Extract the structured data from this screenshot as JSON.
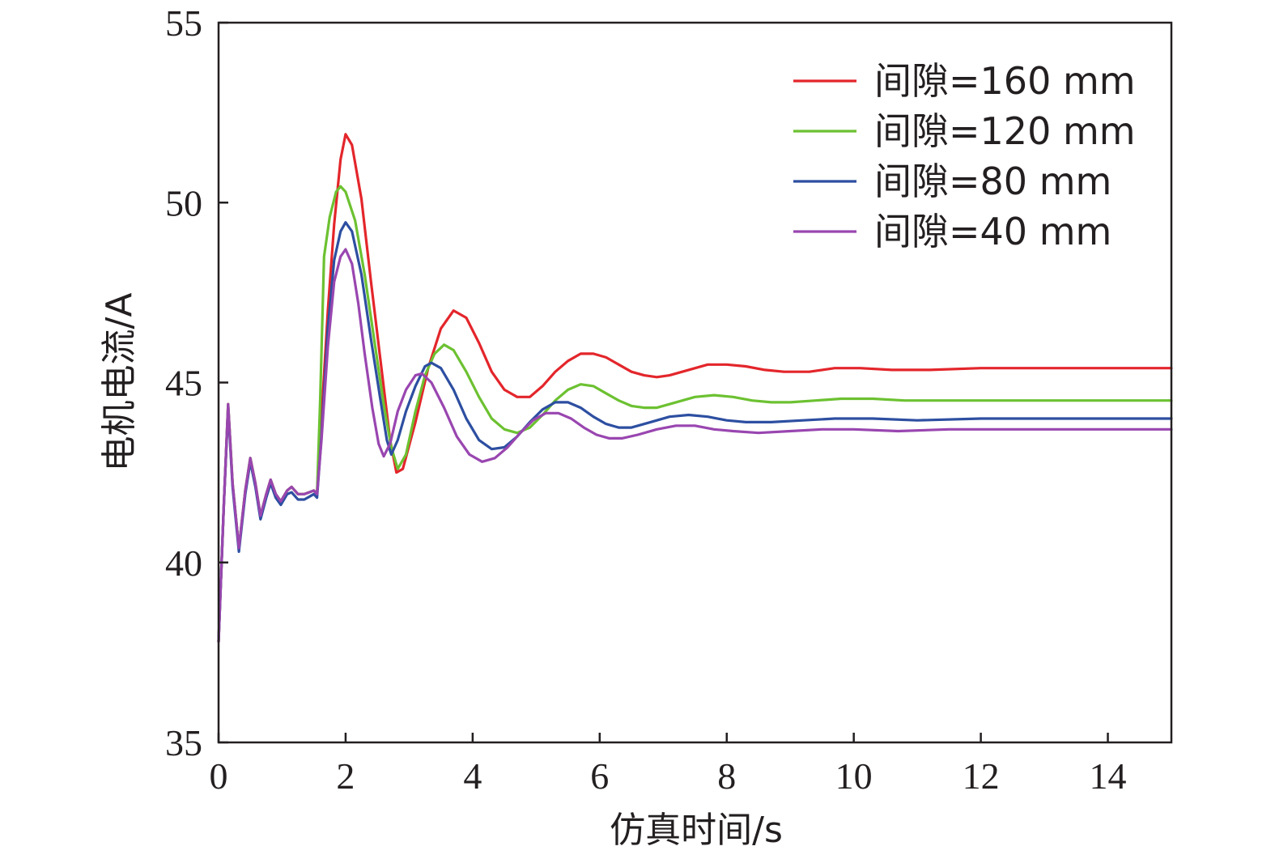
{
  "chart_data": {
    "type": "line",
    "title": "",
    "xlabel": "仿真时间/s",
    "ylabel": "电机电流/A",
    "xlim": [
      0,
      15
    ],
    "ylim": [
      35,
      55
    ],
    "x_ticks": [
      0,
      2,
      4,
      6,
      8,
      10,
      12,
      14
    ],
    "y_ticks": [
      35,
      40,
      45,
      50,
      55
    ],
    "grid": false,
    "legend_position": "top-right",
    "series": [
      {
        "name": "间隙=160 mm",
        "color": "#e3262b",
        "points": [
          [
            0,
            37.8
          ],
          [
            0.08,
            41.5
          ],
          [
            0.15,
            44.4
          ],
          [
            0.22,
            42.2
          ],
          [
            0.32,
            40.4
          ],
          [
            0.42,
            42.0
          ],
          [
            0.5,
            42.9
          ],
          [
            0.58,
            42.2
          ],
          [
            0.66,
            41.3
          ],
          [
            0.75,
            41.9
          ],
          [
            0.82,
            42.3
          ],
          [
            0.9,
            41.9
          ],
          [
            0.98,
            41.7
          ],
          [
            1.08,
            42.0
          ],
          [
            1.15,
            42.1
          ],
          [
            1.25,
            41.9
          ],
          [
            1.35,
            41.9
          ],
          [
            1.5,
            42.0
          ],
          [
            1.55,
            41.9
          ],
          [
            1.62,
            44.0
          ],
          [
            1.72,
            47.0
          ],
          [
            1.82,
            49.4
          ],
          [
            1.92,
            51.2
          ],
          [
            2.0,
            51.9
          ],
          [
            2.1,
            51.6
          ],
          [
            2.25,
            50.1
          ],
          [
            2.4,
            47.8
          ],
          [
            2.55,
            45.6
          ],
          [
            2.7,
            43.4
          ],
          [
            2.8,
            42.5
          ],
          [
            2.9,
            42.6
          ],
          [
            3.1,
            43.9
          ],
          [
            3.3,
            45.4
          ],
          [
            3.5,
            46.5
          ],
          [
            3.7,
            47.0
          ],
          [
            3.9,
            46.8
          ],
          [
            4.1,
            46.1
          ],
          [
            4.3,
            45.3
          ],
          [
            4.5,
            44.8
          ],
          [
            4.7,
            44.6
          ],
          [
            4.9,
            44.6
          ],
          [
            5.1,
            44.9
          ],
          [
            5.3,
            45.3
          ],
          [
            5.5,
            45.6
          ],
          [
            5.7,
            45.8
          ],
          [
            5.9,
            45.8
          ],
          [
            6.1,
            45.7
          ],
          [
            6.3,
            45.5
          ],
          [
            6.5,
            45.3
          ],
          [
            6.7,
            45.2
          ],
          [
            6.9,
            45.15
          ],
          [
            7.1,
            45.2
          ],
          [
            7.4,
            45.35
          ],
          [
            7.7,
            45.5
          ],
          [
            8.0,
            45.5
          ],
          [
            8.3,
            45.45
          ],
          [
            8.6,
            45.35
          ],
          [
            8.9,
            45.3
          ],
          [
            9.3,
            45.3
          ],
          [
            9.7,
            45.4
          ],
          [
            10.1,
            45.4
          ],
          [
            10.6,
            45.35
          ],
          [
            11.2,
            45.35
          ],
          [
            12.0,
            45.4
          ],
          [
            13.0,
            45.4
          ],
          [
            14.0,
            45.4
          ],
          [
            15.0,
            45.4
          ]
        ]
      },
      {
        "name": "间隙=120 mm",
        "color": "#6cc131",
        "points": [
          [
            0,
            37.8
          ],
          [
            0.08,
            41.5
          ],
          [
            0.15,
            44.4
          ],
          [
            0.22,
            42.2
          ],
          [
            0.32,
            40.4
          ],
          [
            0.42,
            42.0
          ],
          [
            0.5,
            42.9
          ],
          [
            0.58,
            42.2
          ],
          [
            0.66,
            41.3
          ],
          [
            0.75,
            41.9
          ],
          [
            0.82,
            42.3
          ],
          [
            0.9,
            41.9
          ],
          [
            0.98,
            41.7
          ],
          [
            1.08,
            42.0
          ],
          [
            1.15,
            42.1
          ],
          [
            1.25,
            41.9
          ],
          [
            1.35,
            41.9
          ],
          [
            1.5,
            42.0
          ],
          [
            1.55,
            41.9
          ],
          [
            1.6,
            44.5
          ],
          [
            1.66,
            48.5
          ],
          [
            1.75,
            49.6
          ],
          [
            1.85,
            50.3
          ],
          [
            1.92,
            50.45
          ],
          [
            2.0,
            50.3
          ],
          [
            2.15,
            49.5
          ],
          [
            2.3,
            48.0
          ],
          [
            2.45,
            46.2
          ],
          [
            2.6,
            44.4
          ],
          [
            2.72,
            43.2
          ],
          [
            2.82,
            42.6
          ],
          [
            2.95,
            43.0
          ],
          [
            3.1,
            44.2
          ],
          [
            3.25,
            45.2
          ],
          [
            3.4,
            45.8
          ],
          [
            3.55,
            46.05
          ],
          [
            3.7,
            45.9
          ],
          [
            3.9,
            45.3
          ],
          [
            4.1,
            44.6
          ],
          [
            4.3,
            44.0
          ],
          [
            4.5,
            43.7
          ],
          [
            4.7,
            43.6
          ],
          [
            4.9,
            43.75
          ],
          [
            5.1,
            44.1
          ],
          [
            5.3,
            44.5
          ],
          [
            5.5,
            44.8
          ],
          [
            5.7,
            44.95
          ],
          [
            5.9,
            44.9
          ],
          [
            6.1,
            44.7
          ],
          [
            6.3,
            44.5
          ],
          [
            6.5,
            44.35
          ],
          [
            6.7,
            44.3
          ],
          [
            6.9,
            44.3
          ],
          [
            7.2,
            44.45
          ],
          [
            7.5,
            44.6
          ],
          [
            7.8,
            44.65
          ],
          [
            8.1,
            44.6
          ],
          [
            8.4,
            44.5
          ],
          [
            8.7,
            44.45
          ],
          [
            9.0,
            44.45
          ],
          [
            9.4,
            44.5
          ],
          [
            9.8,
            44.55
          ],
          [
            10.3,
            44.55
          ],
          [
            10.8,
            44.5
          ],
          [
            11.5,
            44.5
          ],
          [
            12.5,
            44.5
          ],
          [
            13.5,
            44.5
          ],
          [
            15.0,
            44.5
          ]
        ]
      },
      {
        "name": "间隙=80 mm",
        "color": "#2d4fa1",
        "points": [
          [
            0,
            37.8
          ],
          [
            0.08,
            41.5
          ],
          [
            0.15,
            44.3
          ],
          [
            0.22,
            42.1
          ],
          [
            0.32,
            40.3
          ],
          [
            0.42,
            41.9
          ],
          [
            0.5,
            42.8
          ],
          [
            0.58,
            42.1
          ],
          [
            0.66,
            41.2
          ],
          [
            0.75,
            41.8
          ],
          [
            0.82,
            42.2
          ],
          [
            0.9,
            41.8
          ],
          [
            0.98,
            41.6
          ],
          [
            1.08,
            41.9
          ],
          [
            1.15,
            41.95
          ],
          [
            1.25,
            41.75
          ],
          [
            1.35,
            41.75
          ],
          [
            1.5,
            41.9
          ],
          [
            1.55,
            41.8
          ],
          [
            1.62,
            43.5
          ],
          [
            1.72,
            46.5
          ],
          [
            1.82,
            48.4
          ],
          [
            1.92,
            49.2
          ],
          [
            2.0,
            49.45
          ],
          [
            2.1,
            49.2
          ],
          [
            2.25,
            48.0
          ],
          [
            2.4,
            46.2
          ],
          [
            2.55,
            44.5
          ],
          [
            2.65,
            43.4
          ],
          [
            2.72,
            43.0
          ],
          [
            2.82,
            43.4
          ],
          [
            2.95,
            44.2
          ],
          [
            3.1,
            44.9
          ],
          [
            3.25,
            45.45
          ],
          [
            3.35,
            45.55
          ],
          [
            3.5,
            45.4
          ],
          [
            3.7,
            44.8
          ],
          [
            3.9,
            44.0
          ],
          [
            4.1,
            43.4
          ],
          [
            4.3,
            43.15
          ],
          [
            4.5,
            43.2
          ],
          [
            4.7,
            43.5
          ],
          [
            4.9,
            43.9
          ],
          [
            5.1,
            44.25
          ],
          [
            5.3,
            44.45
          ],
          [
            5.5,
            44.45
          ],
          [
            5.7,
            44.3
          ],
          [
            5.9,
            44.05
          ],
          [
            6.1,
            43.85
          ],
          [
            6.3,
            43.75
          ],
          [
            6.5,
            43.75
          ],
          [
            6.8,
            43.9
          ],
          [
            7.1,
            44.05
          ],
          [
            7.4,
            44.1
          ],
          [
            7.7,
            44.05
          ],
          [
            8.0,
            43.95
          ],
          [
            8.3,
            43.9
          ],
          [
            8.7,
            43.9
          ],
          [
            9.2,
            43.95
          ],
          [
            9.7,
            44.0
          ],
          [
            10.3,
            44.0
          ],
          [
            11.0,
            43.95
          ],
          [
            12.0,
            44.0
          ],
          [
            13.0,
            44.0
          ],
          [
            15.0,
            44.0
          ]
        ]
      },
      {
        "name": "间隙=40 mm",
        "color": "#9946b0",
        "points": [
          [
            0,
            37.8
          ],
          [
            0.08,
            41.5
          ],
          [
            0.15,
            44.4
          ],
          [
            0.22,
            42.2
          ],
          [
            0.32,
            40.4
          ],
          [
            0.42,
            42.0
          ],
          [
            0.5,
            42.9
          ],
          [
            0.58,
            42.2
          ],
          [
            0.66,
            41.3
          ],
          [
            0.75,
            41.9
          ],
          [
            0.82,
            42.3
          ],
          [
            0.9,
            41.9
          ],
          [
            0.98,
            41.7
          ],
          [
            1.08,
            42.0
          ],
          [
            1.15,
            42.1
          ],
          [
            1.25,
            41.9
          ],
          [
            1.35,
            41.9
          ],
          [
            1.5,
            42.0
          ],
          [
            1.55,
            41.9
          ],
          [
            1.62,
            43.4
          ],
          [
            1.72,
            46.0
          ],
          [
            1.82,
            47.8
          ],
          [
            1.92,
            48.5
          ],
          [
            2.0,
            48.7
          ],
          [
            2.1,
            48.3
          ],
          [
            2.2,
            47.2
          ],
          [
            2.3,
            45.8
          ],
          [
            2.42,
            44.3
          ],
          [
            2.52,
            43.3
          ],
          [
            2.6,
            42.95
          ],
          [
            2.7,
            43.3
          ],
          [
            2.82,
            44.2
          ],
          [
            2.95,
            44.8
          ],
          [
            3.1,
            45.2
          ],
          [
            3.2,
            45.25
          ],
          [
            3.35,
            45.0
          ],
          [
            3.55,
            44.3
          ],
          [
            3.75,
            43.5
          ],
          [
            3.95,
            43.0
          ],
          [
            4.15,
            42.8
          ],
          [
            4.35,
            42.9
          ],
          [
            4.55,
            43.2
          ],
          [
            4.75,
            43.6
          ],
          [
            4.95,
            43.95
          ],
          [
            5.15,
            44.15
          ],
          [
            5.35,
            44.15
          ],
          [
            5.55,
            44.0
          ],
          [
            5.75,
            43.75
          ],
          [
            5.95,
            43.55
          ],
          [
            6.15,
            43.45
          ],
          [
            6.35,
            43.45
          ],
          [
            6.6,
            43.55
          ],
          [
            6.9,
            43.7
          ],
          [
            7.2,
            43.8
          ],
          [
            7.5,
            43.8
          ],
          [
            7.8,
            43.7
          ],
          [
            8.1,
            43.65
          ],
          [
            8.5,
            43.6
          ],
          [
            9.0,
            43.65
          ],
          [
            9.5,
            43.7
          ],
          [
            10.0,
            43.7
          ],
          [
            10.7,
            43.65
          ],
          [
            11.5,
            43.7
          ],
          [
            12.5,
            43.7
          ],
          [
            13.5,
            43.7
          ],
          [
            15.0,
            43.7
          ]
        ]
      }
    ]
  }
}
